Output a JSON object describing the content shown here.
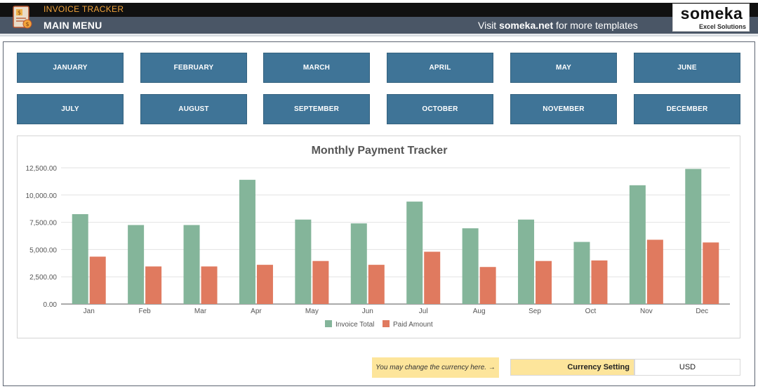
{
  "header": {
    "app_title": "INVOICE TRACKER",
    "menu_title": "MAIN MENU",
    "visit_prefix": "Visit ",
    "visit_site": "someka.net",
    "visit_suffix": " for more templates",
    "brand_name": "someka",
    "brand_sub": "Excel Solutions",
    "logo_icon": "invoice-icon"
  },
  "months": [
    {
      "label": "JANUARY"
    },
    {
      "label": "FEBRUARY"
    },
    {
      "label": "MARCH"
    },
    {
      "label": "APRIL"
    },
    {
      "label": "MAY"
    },
    {
      "label": "JUNE"
    },
    {
      "label": "JULY"
    },
    {
      "label": "AUGUST"
    },
    {
      "label": "SEPTEMBER"
    },
    {
      "label": "OCTOBER"
    },
    {
      "label": "NOVEMBER"
    },
    {
      "label": "DECEMBER"
    }
  ],
  "chart_data": {
    "type": "bar",
    "title": "Monthly Payment Tracker",
    "categories": [
      "Jan",
      "Feb",
      "Mar",
      "Apr",
      "May",
      "Jun",
      "Jul",
      "Aug",
      "Sep",
      "Oct",
      "Nov",
      "Dec"
    ],
    "series": [
      {
        "name": "Invoice Total",
        "color": "#84b59a",
        "values": [
          8250,
          7250,
          7250,
          11400,
          7750,
          7400,
          9400,
          6950,
          7750,
          5700,
          10900,
          12400
        ]
      },
      {
        "name": "Paid Amount",
        "color": "#e07a5f",
        "values": [
          4350,
          3450,
          3450,
          3600,
          3950,
          3600,
          4800,
          3400,
          3950,
          4000,
          5900,
          5650
        ]
      }
    ],
    "ylim": [
      0,
      12500
    ],
    "yticks": [
      "0.00",
      "2,500.00",
      "5,000.00",
      "7,500.00",
      "10,000.00",
      "12,500.00"
    ],
    "grid": true,
    "legend": "bottom"
  },
  "currency": {
    "note": "You may change the currency here. →",
    "label": "Currency Setting",
    "value": "USD"
  }
}
